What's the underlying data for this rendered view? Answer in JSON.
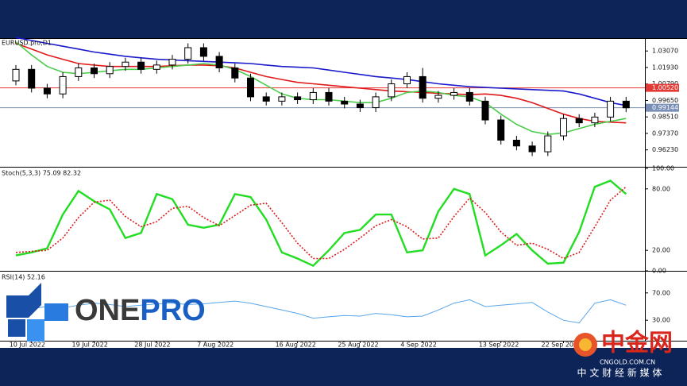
{
  "chart_data": [
    {
      "type": "candlestick",
      "title": "EURUSD.pro,D1",
      "open": [
        1.01,
        1.018,
        1.005,
        1.001,
        1.013,
        1.019,
        1.015,
        1.02,
        1.023,
        1.018,
        1.021,
        1.025,
        1.033,
        1.027,
        1.019,
        1.012,
        0.999,
        0.996,
        0.999,
        0.997,
        1.002,
        0.996,
        0.994,
        0.9915,
        0.999,
        1.008,
        1.013,
        0.998,
        1.0,
        1.002,
        0.996,
        0.983,
        0.969,
        0.965,
        0.961,
        0.972,
        0.984,
        0.981,
        0.985,
        0.996
      ],
      "high": [
        1.021,
        1.021,
        1.008,
        1.016,
        1.022,
        1.022,
        1.023,
        1.026,
        1.026,
        1.024,
        1.028,
        1.036,
        1.036,
        1.03,
        1.022,
        1.015,
        1.002,
        1.002,
        1.002,
        1.005,
        1.005,
        0.999,
        0.997,
        1.002,
        1.011,
        1.016,
        1.019,
        1.003,
        1.005,
        1.005,
        0.999,
        0.986,
        0.972,
        0.968,
        0.975,
        0.987,
        0.987,
        0.988,
        0.999,
        0.999
      ],
      "low": [
        1.007,
        1.002,
        0.998,
        0.998,
        1.01,
        1.012,
        1.012,
        1.017,
        1.015,
        1.015,
        1.018,
        1.022,
        1.024,
        1.016,
        1.009,
        0.996,
        0.993,
        0.993,
        0.994,
        0.994,
        0.993,
        0.991,
        0.9885,
        0.9885,
        0.996,
        1.005,
        0.995,
        0.995,
        0.997,
        0.993,
        0.98,
        0.966,
        0.962,
        0.958,
        0.958,
        0.969,
        0.978,
        0.978,
        0.982,
        0.9884
      ],
      "close": [
        1.018,
        1.005,
        1.001,
        1.013,
        1.019,
        1.015,
        1.02,
        1.023,
        1.018,
        1.021,
        1.025,
        1.033,
        1.027,
        1.019,
        1.012,
        0.999,
        0.996,
        0.999,
        0.997,
        1.002,
        0.996,
        0.994,
        0.9915,
        0.999,
        1.008,
        1.013,
        0.998,
        1.0,
        1.002,
        0.996,
        0.983,
        0.969,
        0.965,
        0.961,
        0.972,
        0.984,
        0.981,
        0.985,
        0.996,
        0.9914
      ],
      "series": [
        {
          "color": "#1a1acc",
          "values": [
            1.04,
            1.038,
            1.036,
            1.034,
            1.032,
            1.03,
            1.0285,
            1.027,
            1.026,
            1.025,
            1.0245,
            1.024,
            1.0235,
            1.023,
            1.0225,
            1.022,
            1.021,
            1.02,
            1.0195,
            1.019,
            1.0175,
            1.016,
            1.0145,
            1.013,
            1.012,
            1.011,
            1.0095,
            1.008,
            1.007,
            1.006,
            1.0055,
            1.005,
            1.0045,
            1.004,
            1.0035,
            1.003,
            1.001,
            0.998,
            0.995,
            0.993
          ]
        },
        {
          "color": "#e01818",
          "values": [
            1.036,
            1.032,
            1.028,
            1.025,
            1.022,
            1.021,
            1.02,
            1.02,
            1.02,
            1.02,
            1.0205,
            1.021,
            1.021,
            1.0205,
            1.019,
            1.016,
            1.013,
            1.011,
            1.009,
            1.008,
            1.007,
            1.006,
            1.005,
            1.004,
            1.003,
            1.0025,
            1.002,
            1.0015,
            1.001,
            1.0005,
            1.001,
            1.0,
            0.998,
            0.995,
            0.991,
            0.987,
            0.984,
            0.982,
            0.9815,
            0.981
          ]
        },
        {
          "color": "#4ccc4c",
          "values": [
            1.037,
            1.028,
            1.02,
            1.016,
            1.015,
            1.016,
            1.017,
            1.018,
            1.018,
            1.019,
            1.02,
            1.021,
            1.022,
            1.021,
            1.018,
            1.013,
            1.007,
            1.001,
            0.998,
            0.997,
            0.997,
            0.996,
            0.995,
            0.995,
            0.998,
            1.002,
            1.003,
            1.002,
            1.0,
            0.999,
            0.995,
            0.987,
            0.98,
            0.975,
            0.973,
            0.974,
            0.977,
            0.98,
            0.982,
            0.984
          ]
        }
      ],
      "price_lines": [
        {
          "value": 1.0052,
          "label": "1.00520",
          "color": "#e53935"
        },
        {
          "value": 0.99144,
          "label": "0.99144",
          "color": "#7a8fb8"
        }
      ],
      "ylim": [
        0.9506,
        1.0396
      ],
      "yticks": [
        {
          "value": 0.9623,
          "label": "0.96230"
        },
        {
          "value": 0.9737,
          "label": "0.97370"
        },
        {
          "value": 0.9851,
          "label": "0.98510"
        },
        {
          "value": 0.9965,
          "label": "0.99650"
        },
        {
          "value": 1.0079,
          "label": "1.00790"
        },
        {
          "value": 1.0193,
          "label": "1.01930"
        },
        {
          "value": 1.0307,
          "label": "1.03070"
        }
      ]
    },
    {
      "type": "line",
      "title": "Stoch(5,3,3) 75.09 82.32",
      "series": [
        {
          "color": "#22dd22",
          "style": "solid",
          "values": [
            15,
            18,
            22,
            55,
            78,
            68,
            60,
            32,
            37,
            75,
            70,
            45,
            42,
            45,
            75,
            72,
            50,
            18,
            12,
            5,
            20,
            37,
            40,
            55,
            55,
            18,
            20,
            58,
            80,
            75,
            15,
            25,
            36,
            20,
            7,
            8,
            38,
            82,
            88,
            75
          ]
        },
        {
          "color": "#dd1a1a",
          "style": "dotted",
          "values": [
            18,
            19,
            20,
            32,
            52,
            67,
            69,
            53,
            43,
            48,
            61,
            63,
            52,
            44,
            54,
            64,
            66,
            47,
            27,
            12,
            12,
            21,
            32,
            44,
            50,
            43,
            31,
            32,
            53,
            71,
            57,
            38,
            25,
            27,
            21,
            12,
            18,
            43,
            69,
            82
          ]
        }
      ],
      "ylim": [
        0,
        100
      ],
      "yticks": [
        {
          "value": 0,
          "label": "0.00"
        },
        {
          "value": 20,
          "label": "20.00"
        },
        {
          "value": 80,
          "label": "80.00"
        },
        {
          "value": 100,
          "label": "100.00"
        }
      ]
    },
    {
      "type": "line",
      "title": "RSI(14) 52.16",
      "categories": [
        null,
        "10 Jul 2022",
        null,
        null,
        null,
        "19 Jul 2022",
        null,
        null,
        null,
        "28 Jul 2022",
        null,
        null,
        null,
        "7 Aug 2022",
        null,
        null,
        null,
        null,
        "16 Aug 2022",
        null,
        null,
        null,
        "25 Aug 2022",
        null,
        null,
        null,
        "4 Sep 2022",
        null,
        null,
        null,
        null,
        "13 Sep 2022",
        null,
        null,
        null,
        "22 Sep 2022",
        null,
        null,
        null,
        null
      ],
      "series": [
        {
          "color": "#5aa5ea",
          "style": "solid",
          "values": [
            45,
            47,
            50,
            48,
            52,
            55,
            53,
            50,
            52,
            54,
            55,
            53,
            54,
            56,
            58,
            55,
            50,
            45,
            40,
            33,
            35,
            37,
            36,
            40,
            38,
            35,
            36,
            45,
            55,
            60,
            50,
            52,
            54,
            56,
            42,
            30,
            26,
            55,
            60,
            52
          ]
        }
      ],
      "ylim": [
        0,
        100
      ],
      "yticks": [
        {
          "value": 30,
          "label": "30.00"
        },
        {
          "value": 70,
          "label": "70.00"
        }
      ]
    }
  ],
  "watermarks": {
    "left_logo": [
      "ONE",
      "PRO"
    ],
    "right_logo": "中金网",
    "right_site": "CNGOLD.COM.CN",
    "right_slogan": "中 文 财 经 新 媒 体"
  }
}
